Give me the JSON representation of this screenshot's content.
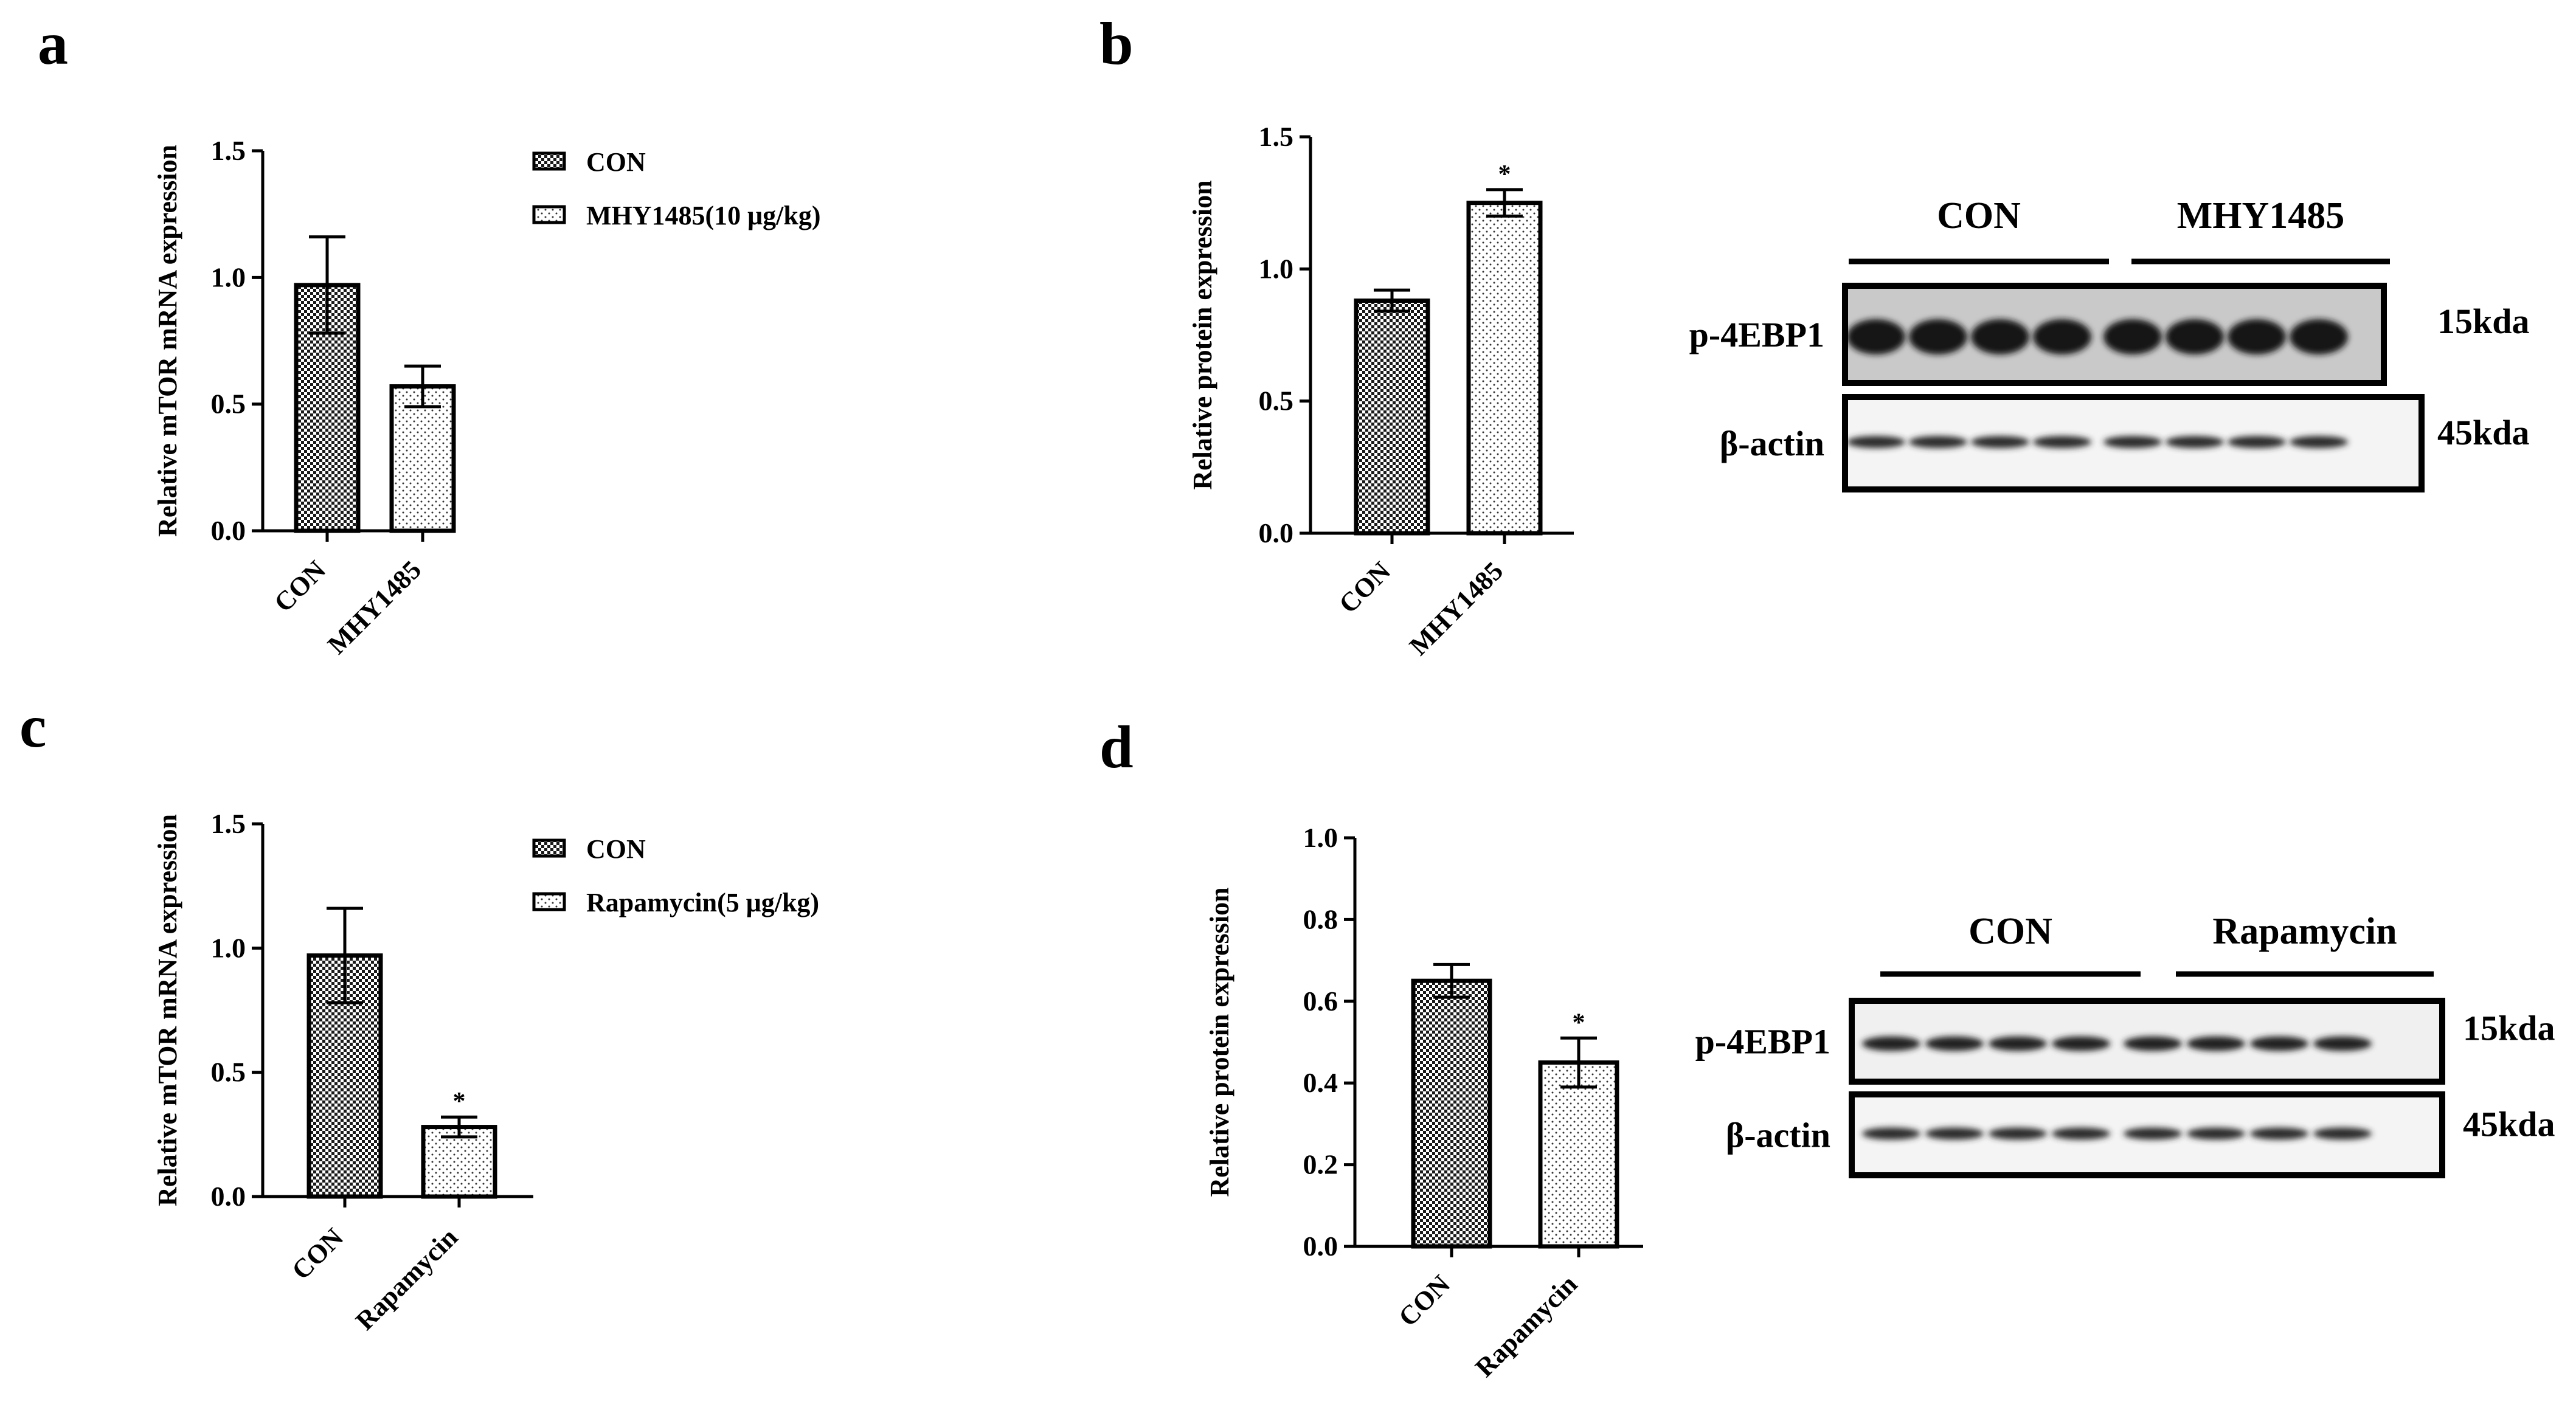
{
  "panels": [
    {
      "letter": "a",
      "chart_data": {
        "type": "bar",
        "categories": [
          "CON",
          "MHY1485"
        ],
        "values": [
          0.97,
          0.57
        ],
        "errors": [
          0.19,
          0.08
        ],
        "significance": [
          "",
          ""
        ],
        "patterns": [
          "checker",
          "dots"
        ],
        "title": "",
        "xlabel": "",
        "ylabel": "Relative mTOR mRNA expression",
        "ylim": [
          0,
          1.5
        ],
        "yticks": [
          "0.0",
          "0.5",
          "1.0",
          "1.5"
        ],
        "legend": [
          "CON",
          "MHY1485(10 μg/kg)"
        ],
        "legend_position": "right",
        "grid": false
      }
    },
    {
      "letter": "b",
      "chart_data": {
        "type": "bar",
        "categories": [
          "CON",
          "MHY1485"
        ],
        "values": [
          0.88,
          1.25
        ],
        "errors": [
          0.04,
          0.05
        ],
        "significance": [
          "",
          "*"
        ],
        "patterns": [
          "checker",
          "dots"
        ],
        "title": "",
        "xlabel": "",
        "ylabel": "Relative protein expression",
        "ylim": [
          0,
          1.5
        ],
        "yticks": [
          "0.0",
          "0.5",
          "1.0",
          "1.5"
        ],
        "grid": false
      },
      "blot": {
        "groups": [
          "CON",
          "MHY1485"
        ],
        "rows": [
          {
            "label": "p-4EBP1",
            "size": "15kda"
          },
          {
            "label": "β-actin",
            "size": "45kda"
          }
        ]
      }
    },
    {
      "letter": "c",
      "chart_data": {
        "type": "bar",
        "categories": [
          "CON",
          "Rapamycin"
        ],
        "values": [
          0.97,
          0.28
        ],
        "errors": [
          0.19,
          0.04
        ],
        "significance": [
          "",
          "*"
        ],
        "patterns": [
          "checker",
          "dots"
        ],
        "title": "",
        "xlabel": "",
        "ylabel": "Relative mTOR mRNA expression",
        "ylim": [
          0,
          1.5
        ],
        "yticks": [
          "0.0",
          "0.5",
          "1.0",
          "1.5"
        ],
        "legend": [
          "CON",
          "Rapamycin(5 μg/kg)"
        ],
        "legend_position": "right",
        "grid": false
      }
    },
    {
      "letter": "d",
      "chart_data": {
        "type": "bar",
        "categories": [
          "CON",
          "Rapamycin"
        ],
        "values": [
          0.65,
          0.45
        ],
        "errors": [
          0.04,
          0.06
        ],
        "significance": [
          "",
          "*"
        ],
        "patterns": [
          "checker",
          "dots"
        ],
        "title": "",
        "xlabel": "",
        "ylabel": "Relative protein expression",
        "ylim": [
          0,
          1.0
        ],
        "yticks": [
          "0.0",
          "0.2",
          "0.4",
          "0.6",
          "0.8",
          "1.0"
        ],
        "grid": false
      },
      "blot": {
        "groups": [
          "CON",
          "Rapamycin"
        ],
        "rows": [
          {
            "label": "p-4EBP1",
            "size": "15kda"
          },
          {
            "label": "β-actin",
            "size": "45kda"
          }
        ]
      }
    }
  ]
}
